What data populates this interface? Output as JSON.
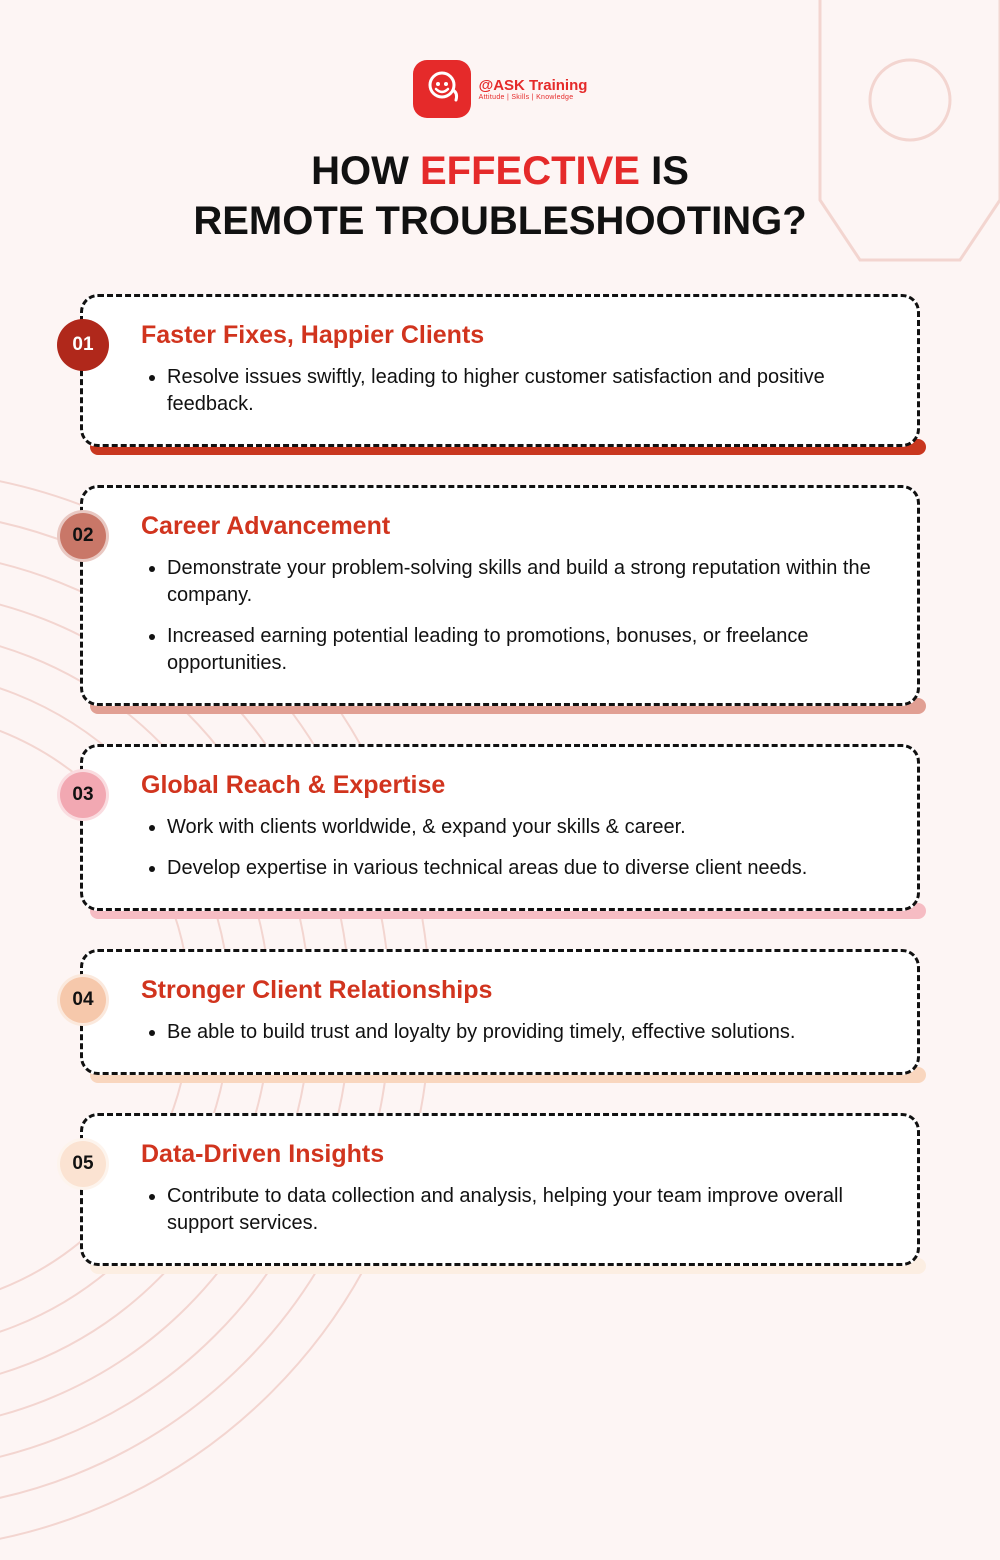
{
  "brand": {
    "title": "@ASK Training",
    "subtitle": "Attitude | Skills | Knowledge",
    "color": "#e52a2a"
  },
  "headline": {
    "pre": "HOW ",
    "accent": "EFFECTIVE",
    "post": " IS",
    "line2": "REMOTE TROUBLESHOOTING?",
    "accent_color": "#e52a2a",
    "text_color": "#111111",
    "fontsize": 40
  },
  "background_color": "#fdf5f4",
  "cards": [
    {
      "num": "01",
      "title": "Faster Fixes, Happier Clients",
      "title_color": "#d1341e",
      "badge_bg": "#b0281b",
      "badge_text_color": "#ffffff",
      "bar_color": "#c9371f",
      "bullets": [
        "Resolve issues swiftly, leading to higher customer satisfaction and positive feedback."
      ]
    },
    {
      "num": "02",
      "title": "Career Advancement",
      "title_color": "#d1341e",
      "badge_bg": "#c97768",
      "badge_text_color": "#111111",
      "bar_color": "#e19f93",
      "bullets": [
        "Demonstrate your problem-solving skills and build a strong reputation within the company.",
        "Increased earning potential leading to promotions, bonuses, or freelance opportunities."
      ]
    },
    {
      "num": "03",
      "title": "Global Reach & Expertise",
      "title_color": "#d1341e",
      "badge_bg": "#f2a8b2",
      "badge_text_color": "#111111",
      "bar_color": "#f6bcc3",
      "bullets": [
        "Work with clients worldwide, & expand your skills & career.",
        "Develop expertise in various technical areas due to diverse client needs."
      ]
    },
    {
      "num": "04",
      "title": "Stronger Client Relationships",
      "title_color": "#d1341e",
      "badge_bg": "#f6c8ab",
      "badge_text_color": "#111111",
      "bar_color": "#f9d6be",
      "bullets": [
        "Be able to build trust and loyalty by providing timely, effective solutions."
      ]
    },
    {
      "num": "05",
      "title": "Data-Driven Insights",
      "title_color": "#d1341e",
      "badge_bg": "#fbe3d2",
      "badge_text_color": "#111111",
      "bar_color": "#fceee2",
      "bullets": [
        "Contribute to data collection and analysis, helping your team improve overall support services."
      ]
    }
  ]
}
